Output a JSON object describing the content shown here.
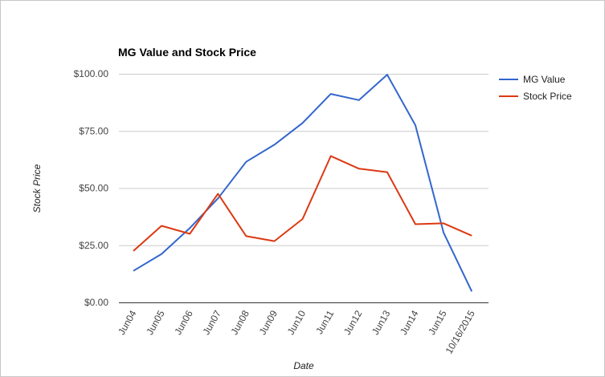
{
  "chart_data": {
    "type": "line",
    "title": "MG Value and Stock Price",
    "xlabel": "Date",
    "ylabel": "Stock Price",
    "categories": [
      "Jun04",
      "Jun05",
      "Jun06",
      "Jun07",
      "Jun08",
      "Jun09",
      "Jun10",
      "Jun11",
      "Jun12",
      "Jun13",
      "Jun14",
      "Jun15",
      "10/16/2015"
    ],
    "ylim": [
      0,
      100
    ],
    "yticks": [
      "$0.00",
      "$25.00",
      "$50.00",
      "$75.00",
      "$100.00"
    ],
    "grid": true,
    "legend_position": "right",
    "series": [
      {
        "name": "MG Value",
        "color": "#3366cc",
        "values": [
          13.8,
          21.2,
          32.5,
          45.5,
          61.5,
          69.0,
          78.5,
          91.2,
          88.5,
          99.6,
          77.5,
          30.5,
          4.8
        ]
      },
      {
        "name": "Stock Price",
        "color": "#dc3912",
        "values": [
          22.5,
          33.5,
          30.0,
          47.5,
          29.0,
          26.8,
          36.5,
          64.0,
          58.5,
          57.0,
          34.2,
          34.6,
          29.2
        ]
      }
    ]
  }
}
